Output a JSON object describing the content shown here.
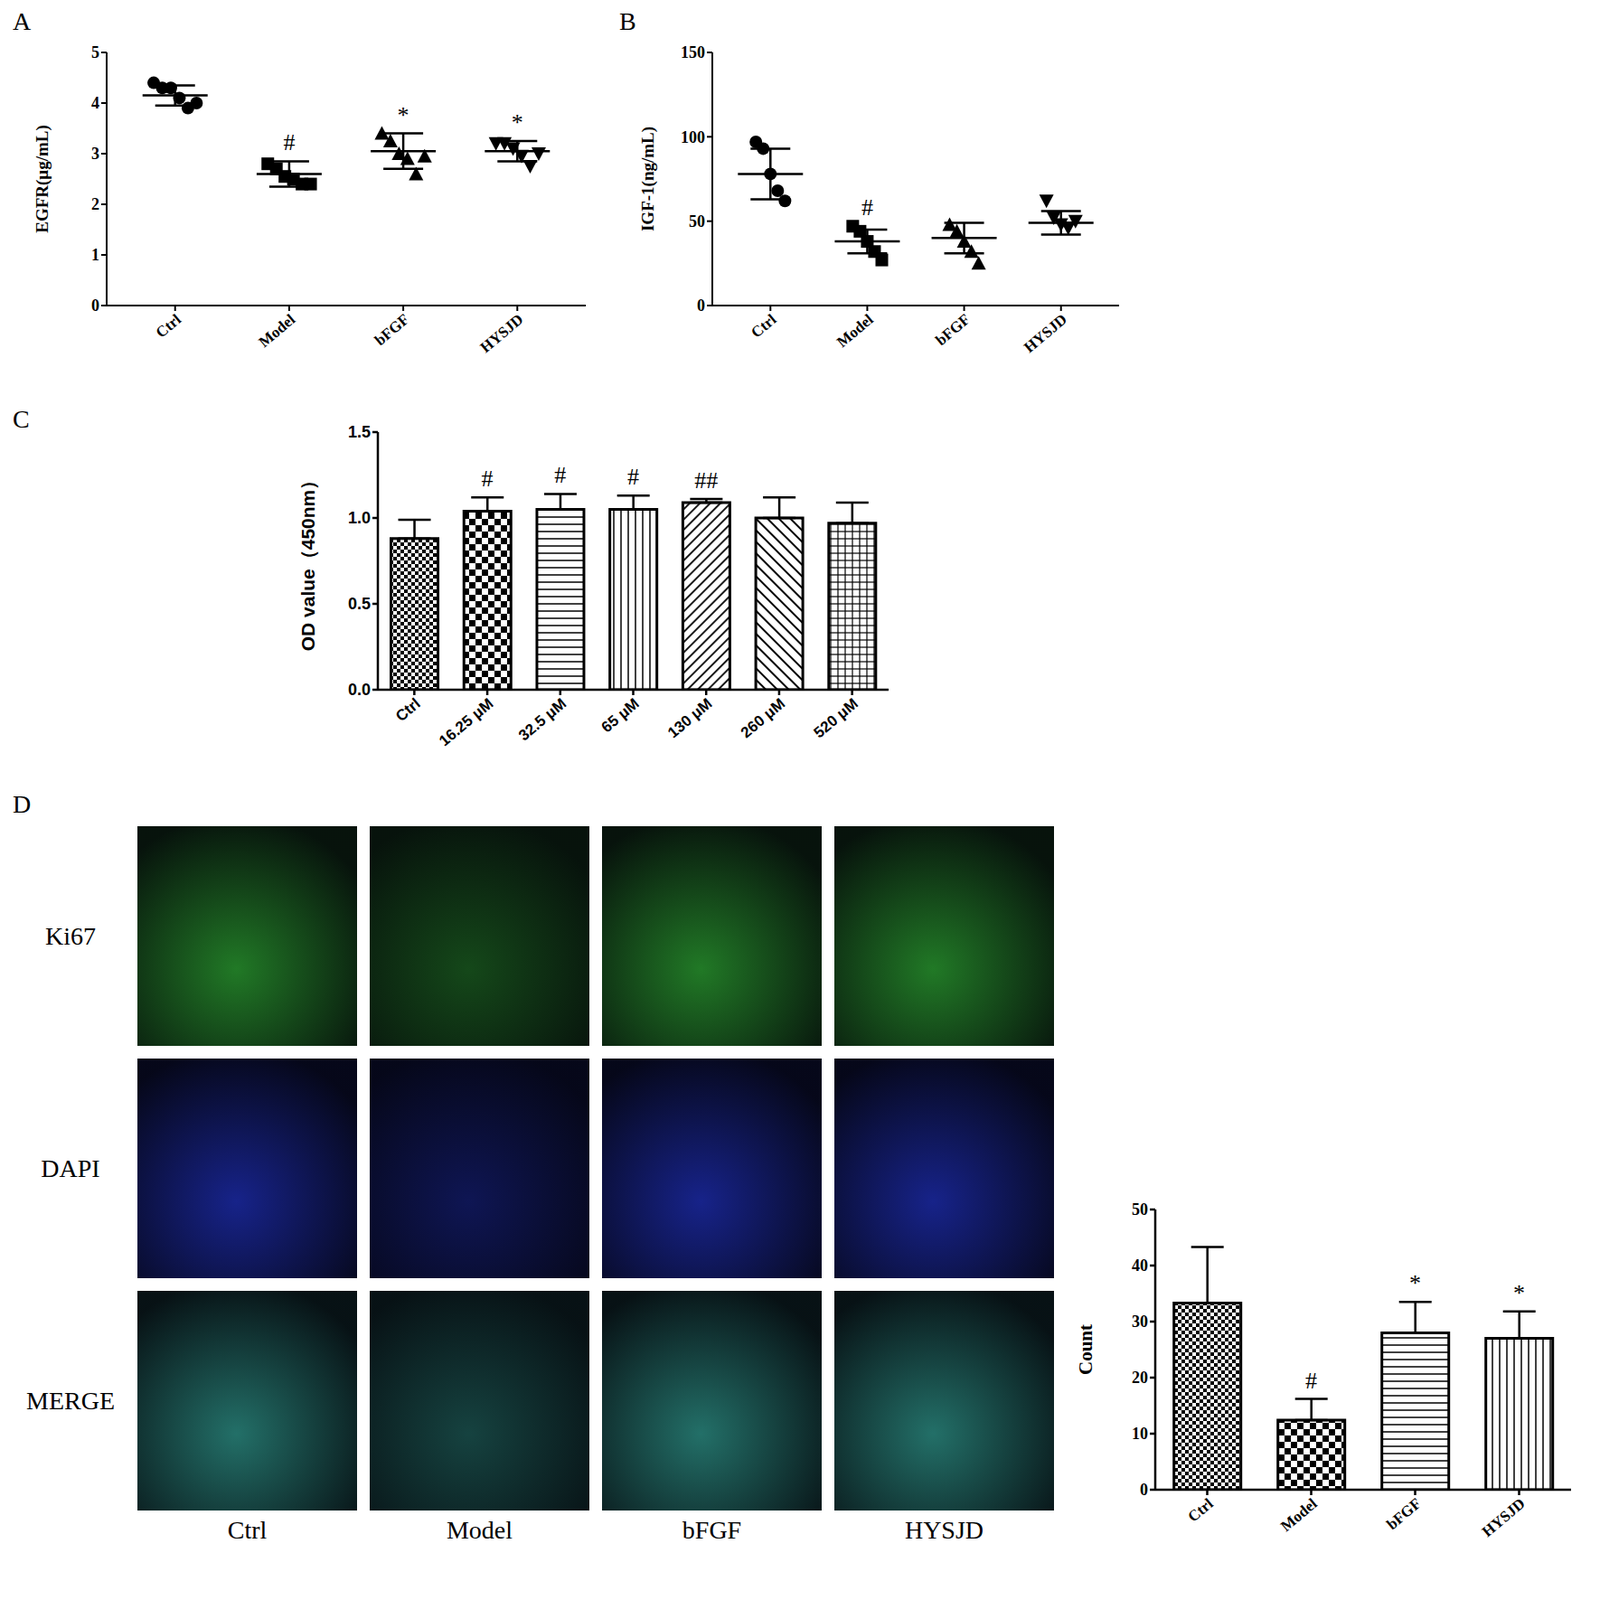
{
  "chart_data": [
    {
      "type": "scatter",
      "title": "A",
      "ylabel": "EGFR(μg/mL)",
      "categories": [
        "Ctrl",
        "Model",
        "bFGF",
        "HYSJD"
      ],
      "values": [
        [
          4.4,
          4.3,
          4.3,
          4.1,
          3.9,
          4.0
        ],
        [
          2.8,
          2.7,
          2.55,
          2.5,
          2.4,
          2.4
        ],
        [
          3.4,
          3.25,
          3.0,
          2.9,
          2.6,
          2.95
        ],
        [
          3.2,
          3.2,
          3.1,
          2.95,
          2.75,
          3.0
        ]
      ],
      "mean": [
        4.15,
        2.6,
        3.05,
        3.05
      ],
      "sd": [
        0.2,
        0.25,
        0.35,
        0.2
      ],
      "annotations": [
        null,
        "#",
        "*",
        "*"
      ],
      "marker": [
        "circle",
        "square",
        "triangle",
        "triangle-down"
      ],
      "color": "#000000",
      "ylim": [
        0,
        5
      ],
      "yticks": [
        0,
        1,
        2,
        3,
        4,
        5
      ]
    },
    {
      "type": "scatter",
      "title": "B",
      "ylabel": "IGF-1(ng/mL)",
      "categories": [
        "Ctrl",
        "Model",
        "bFGF",
        "HYSJD"
      ],
      "values": [
        [
          97,
          93,
          78,
          68,
          62
        ],
        [
          47,
          44,
          38,
          32,
          27
        ],
        [
          48,
          44,
          38,
          32,
          25
        ],
        [
          62,
          52,
          48,
          46,
          50
        ]
      ],
      "mean": [
        78,
        38,
        40,
        49
      ],
      "sd": [
        15,
        7,
        9,
        7
      ],
      "annotations": [
        null,
        "#",
        null,
        null
      ],
      "marker": [
        "circle",
        "square",
        "triangle",
        "triangle-down"
      ],
      "color": "#000000",
      "ylim": [
        0,
        150
      ],
      "yticks": [
        0,
        50,
        100,
        150
      ]
    },
    {
      "type": "bar",
      "title": "C",
      "ylabel": "OD value（450nm）",
      "categories": [
        "Ctrl",
        "16.25 μM",
        "32.5 μM",
        "65 μM",
        "130 μM",
        "260 μM",
        "520 μM"
      ],
      "values": [
        0.88,
        1.04,
        1.05,
        1.05,
        1.09,
        1.0,
        0.97
      ],
      "sd": [
        0.11,
        0.08,
        0.09,
        0.08,
        0.02,
        0.12,
        0.12
      ],
      "annotations": [
        null,
        "#",
        "#",
        "#",
        "##",
        null,
        null
      ],
      "color": "#000000",
      "ylim": [
        0,
        1.5
      ],
      "yticks": [
        {
          "value": 0,
          "label": "0.0"
        },
        {
          "value": 0.5,
          "label": "0.5"
        },
        {
          "value": 1,
          "label": "1.0"
        },
        {
          "value": 1.5,
          "label": "1.5"
        }
      ]
    },
    {
      "type": "image_grid",
      "title": "D",
      "rows": [
        "Ki67",
        "DAPI",
        "MERGE"
      ],
      "columns": [
        "Ctrl",
        "Model",
        "bFGF",
        "HYSJD"
      ],
      "colors": [
        "#35c83a",
        "#2438e0",
        "#38b8a8"
      ]
    },
    {
      "type": "bar",
      "ylabel": "Count",
      "categories": [
        "Ctrl",
        "Model",
        "bFGF",
        "HYSJD"
      ],
      "values": [
        33.3,
        12.4,
        28,
        27
      ],
      "sd": [
        10,
        3.8,
        5.5,
        4.8
      ],
      "annotations": [
        null,
        "#",
        "*",
        "*"
      ],
      "color": "#000000",
      "ylim": [
        0,
        50
      ],
      "yticks": [
        0,
        10,
        20,
        30,
        40,
        50
      ]
    }
  ]
}
